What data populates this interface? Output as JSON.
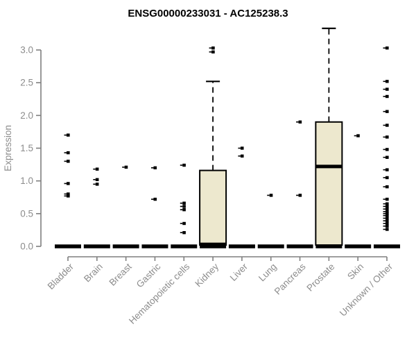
{
  "chart_data": {
    "type": "boxplot",
    "title": "ENSG00000233031 - AC125238.3",
    "ylabel": "Expression",
    "xlabel": "",
    "ylim": [
      0,
      3.35
    ],
    "yticks": [
      "0.0",
      "0.5",
      "1.0",
      "1.5",
      "2.0",
      "2.5",
      "3.0"
    ],
    "grid": "off",
    "legend": "none",
    "categories": [
      "Bladder",
      "Brain",
      "Breast",
      "Gastric",
      "Hematopoietic cells",
      "Kidney",
      "Liver",
      "Lung",
      "Pancreas",
      "Prostate",
      "Skin",
      "Unknown / Other"
    ],
    "series": [
      {
        "category": "Bladder",
        "zero_bar": true,
        "box": null,
        "outliers": [
          1.7,
          1.43,
          1.3,
          0.96,
          0.8,
          0.77
        ]
      },
      {
        "category": "Brain",
        "zero_bar": true,
        "box": null,
        "outliers": [
          1.18,
          1.02,
          0.95
        ]
      },
      {
        "category": "Breast",
        "zero_bar": true,
        "box": null,
        "outliers": [
          1.21
        ]
      },
      {
        "category": "Gastric",
        "zero_bar": true,
        "box": null,
        "outliers": [
          1.2,
          0.72
        ]
      },
      {
        "category": "Hematopoietic cells",
        "zero_bar": true,
        "box": null,
        "outliers": [
          1.24,
          0.66,
          0.61,
          0.56,
          0.35,
          0.21
        ]
      },
      {
        "category": "Kidney",
        "zero_bar": true,
        "box": {
          "whisker_low": 0.02,
          "q1": 0.02,
          "median": 0.03,
          "q3": 1.16,
          "whisker_high": 2.52
        },
        "outliers": [
          2.97,
          3.03
        ]
      },
      {
        "category": "Liver",
        "zero_bar": true,
        "box": null,
        "outliers": [
          1.5,
          1.38
        ]
      },
      {
        "category": "Lung",
        "zero_bar": true,
        "box": null,
        "outliers": [
          0.78
        ]
      },
      {
        "category": "Pancreas",
        "zero_bar": true,
        "box": null,
        "outliers": [
          1.9,
          0.78
        ]
      },
      {
        "category": "Prostate",
        "zero_bar": true,
        "box": {
          "whisker_low": 0.02,
          "q1": 0.02,
          "median": 1.22,
          "q3": 1.9,
          "whisker_high": 3.33
        },
        "outliers": []
      },
      {
        "category": "Skin",
        "zero_bar": true,
        "box": null,
        "outliers": [
          1.69
        ]
      },
      {
        "category": "Unknown / Other",
        "zero_bar": true,
        "box": null,
        "outliers": [
          3.03,
          2.52,
          2.4,
          2.29,
          2.06,
          1.85,
          1.67,
          1.48,
          1.36,
          1.17,
          1.05,
          0.91,
          0.72,
          0.65,
          0.61,
          0.57,
          0.53,
          0.5,
          0.47,
          0.43,
          0.39,
          0.35,
          0.31,
          0.26
        ]
      }
    ],
    "colors": {
      "box_fill": "#EDE8CE",
      "box_stroke": "#000000",
      "median": "#000000",
      "point": "#000000",
      "axis": "#7f7f7f",
      "tick_label": "#8c8c8c",
      "title": "#000000",
      "background": "#ffffff"
    }
  }
}
